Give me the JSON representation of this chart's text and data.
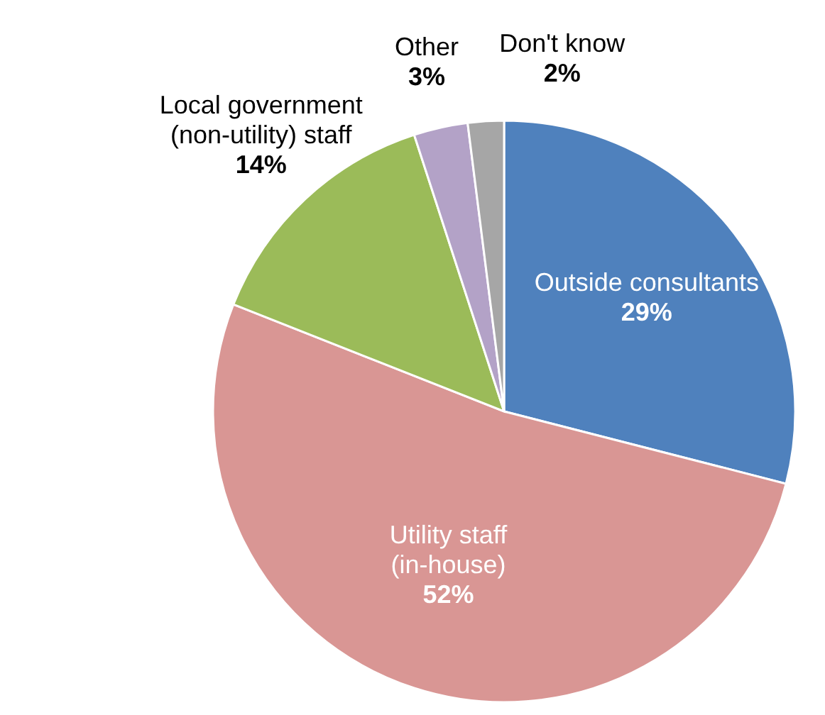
{
  "chart_data": {
    "type": "pie",
    "categories": [
      "Outside consultants",
      "Utility staff (in-house)",
      "Local government (non-utility) staff",
      "Other",
      "Don't know"
    ],
    "values": [
      29,
      52,
      14,
      3,
      2
    ],
    "value_labels": [
      "29%",
      "52%",
      "14%",
      "3%",
      "2%"
    ],
    "colors": [
      "#4f81bd",
      "#d99694",
      "#9bbb59",
      "#b3a2c7",
      "#a6a6a6"
    ]
  }
}
